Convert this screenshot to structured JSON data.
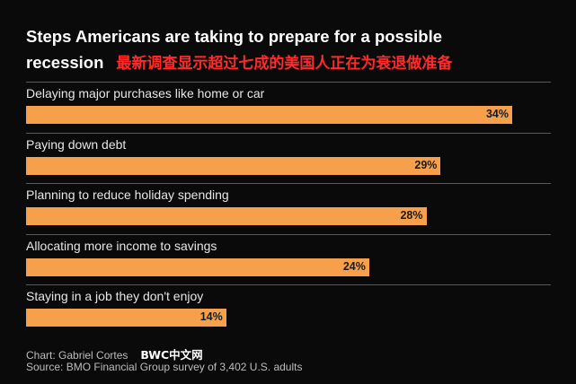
{
  "chart_data": {
    "type": "bar",
    "orientation": "horizontal",
    "title": "Steps Americans are taking to prepare for a possible recession",
    "categories": [
      "Delaying major purchases like home or car",
      "Paying down debt",
      "Planning to reduce holiday spending",
      "Allocating more income to savings",
      "Staying in a job they don't enjoy"
    ],
    "values": [
      34,
      29,
      28,
      24,
      14
    ],
    "value_labels": [
      "34%",
      "29%",
      "28%",
      "24%",
      "14%"
    ],
    "xlim": [
      0,
      40
    ],
    "grid": false,
    "bar_color": "#f7a04c",
    "background_color": "#0a0a0a"
  },
  "title": {
    "line1": "Steps Americans are taking to prepare for a possible",
    "line2": "recession"
  },
  "overlay_caption": "最新调查显示超过七成的美国人正在为衰退做准备",
  "footer": {
    "credit": "Chart: Gabriel Cortes",
    "watermark": "BWC中文网",
    "source": "Source: BMO Financial Group survey of 3,402 U.S. adults"
  }
}
